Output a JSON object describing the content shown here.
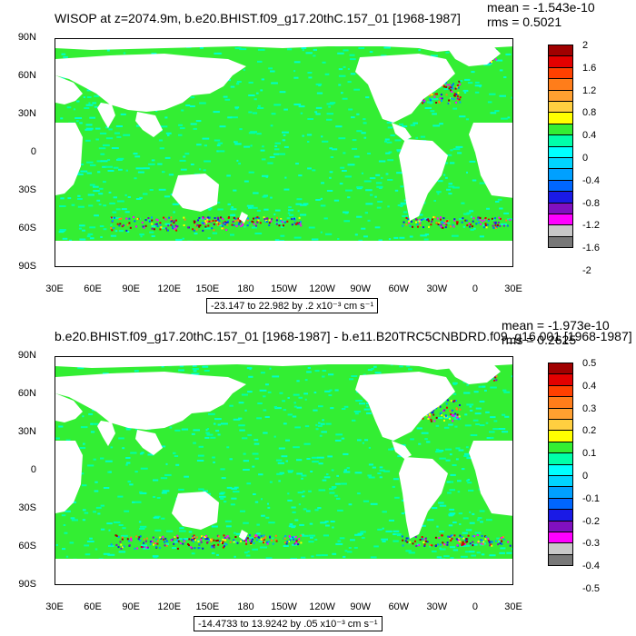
{
  "chart_data": [
    {
      "type": "heatmap",
      "title": "WISOP at z=2074.9m, b.e20.BHIST.f09_g17.20thC.157_01 [1968-1987]",
      "mean_label": "mean = -1.543e-10",
      "rms_label": "rms = 0.5021",
      "range_label": "-23.147 to 22.982 by .2 x10⁻³ cm s⁻¹",
      "y_ticks": [
        "90N",
        "60N",
        "30N",
        "0",
        "30S",
        "60S",
        "90S"
      ],
      "x_ticks": [
        "30E",
        "60E",
        "90E",
        "120E",
        "150E",
        "180",
        "150W",
        "120W",
        "90W",
        "60W",
        "30W",
        "0",
        "30E"
      ],
      "colorbar_labels": [
        "2",
        "1.6",
        "1.2",
        "0.8",
        "0.4",
        "0",
        "-0.4",
        "-0.8",
        "-1.2",
        "-1.6",
        "-2"
      ],
      "colorbar_colors": [
        "#a00000",
        "#e30000",
        "#ff4000",
        "#ff7d1a",
        "#ffa030",
        "#ffcf40",
        "#ffff00",
        "#33ee33",
        "#00ffaa",
        "#00ffff",
        "#00d4ff",
        "#00a0ff",
        "#0066ff",
        "#1a1ae6",
        "#8010c0",
        "#ff00ff",
        "#c8c8c8",
        "#787878"
      ],
      "ylim": [
        "90S",
        "90N"
      ],
      "xlim": [
        "30E",
        "30E"
      ],
      "grid": false
    },
    {
      "type": "heatmap",
      "title": "b.e20.BHIST.f09_g17.20thC.157_01 [1968-1987] - b.e11.B20TRC5CNBDRD.f09_g16.001 [1968-1987]",
      "mean_label": "mean = -1.973e-10",
      "rms_label": "rms = 0.2625",
      "range_label": "-14.4733 to 13.9242 by .05 x10⁻³ cm s⁻¹",
      "y_ticks": [
        "90N",
        "60N",
        "30N",
        "0",
        "30S",
        "60S",
        "90S"
      ],
      "x_ticks": [
        "30E",
        "60E",
        "90E",
        "120E",
        "150E",
        "180",
        "150W",
        "120W",
        "90W",
        "60W",
        "30W",
        "0",
        "30E"
      ],
      "colorbar_labels": [
        "0.5",
        "0.4",
        "0.3",
        "0.2",
        "0.1",
        "0",
        "-0.1",
        "-0.2",
        "-0.3",
        "-0.4",
        "-0.5"
      ],
      "colorbar_colors": [
        "#a00000",
        "#e30000",
        "#ff4000",
        "#ff7d1a",
        "#ffa030",
        "#ffcf40",
        "#ffff00",
        "#33ee33",
        "#00ffaa",
        "#00ffff",
        "#00d4ff",
        "#00a0ff",
        "#0066ff",
        "#1a1ae6",
        "#8010c0",
        "#ff00ff",
        "#c8c8c8",
        "#787878"
      ],
      "ylim": [
        "90S",
        "90N"
      ],
      "xlim": [
        "30E",
        "30E"
      ],
      "grid": false
    }
  ],
  "colors": {
    "ocean_green": "#33ee33",
    "ocean_cyan": "#00ffaa",
    "land": "#ffffff"
  }
}
